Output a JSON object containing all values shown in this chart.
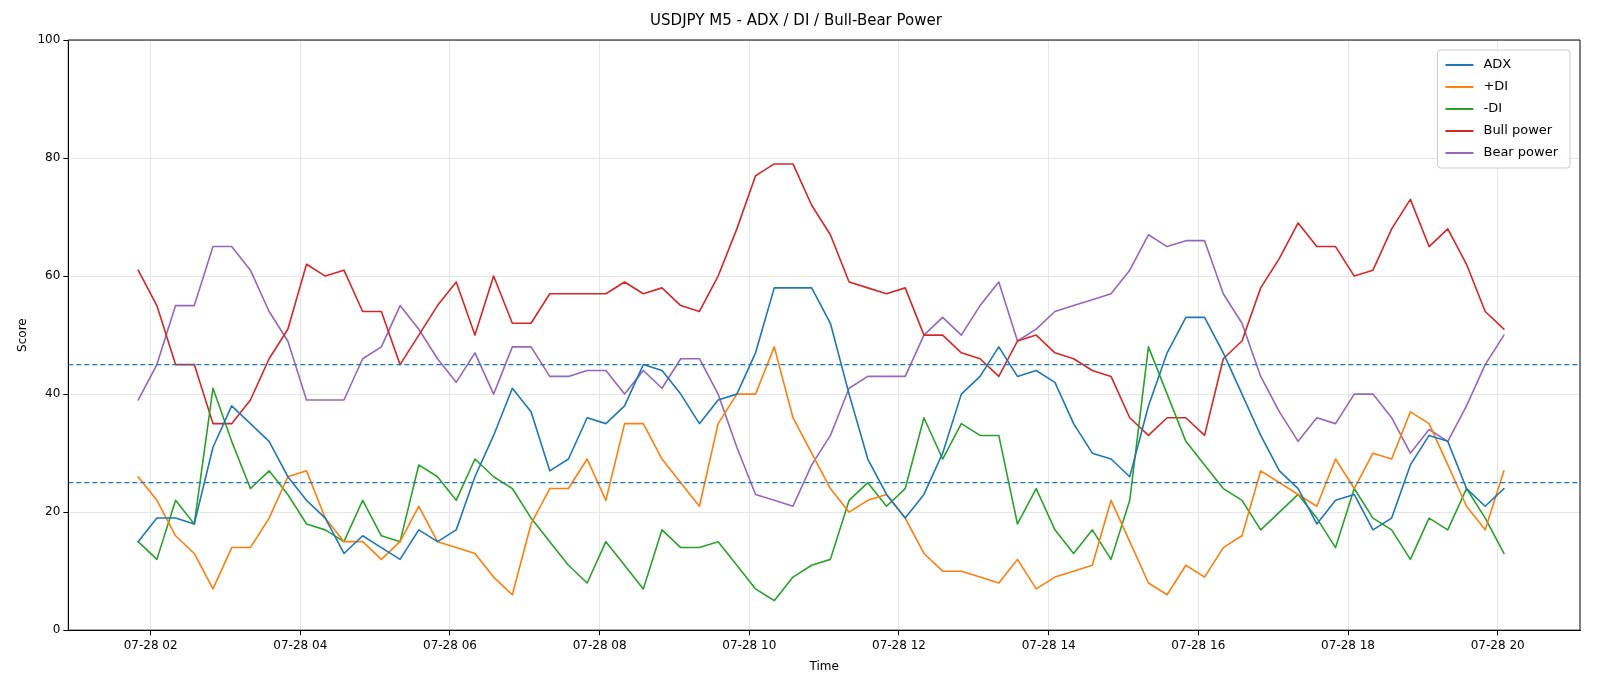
{
  "chart_data": {
    "type": "line",
    "title": "USDJPY M5 - ADX / DI / Bull-Bear Power",
    "xlabel": "Time",
    "ylabel": "Score",
    "x": [
      "--07-28T01:50",
      "--07-28T02:05",
      "--07-28T02:20",
      "--07-28T02:35",
      "--07-28T02:50",
      "--07-28T03:05",
      "--07-28T03:20",
      "--07-28T03:35",
      "--07-28T03:50",
      "--07-28T04:05",
      "--07-28T04:20",
      "--07-28T04:35",
      "--07-28T04:50",
      "--07-28T05:05",
      "--07-28T05:20",
      "--07-28T05:35",
      "--07-28T05:50",
      "--07-28T06:05",
      "--07-28T06:20",
      "--07-28T06:35",
      "--07-28T06:50",
      "--07-28T07:05",
      "--07-28T07:20",
      "--07-28T07:35",
      "--07-28T07:50",
      "--07-28T08:05",
      "--07-28T08:20",
      "--07-28T08:35",
      "--07-28T08:50",
      "--07-28T09:05",
      "--07-28T09:20",
      "--07-28T09:35",
      "--07-28T09:50",
      "--07-28T10:05",
      "--07-28T10:20",
      "--07-28T10:35",
      "--07-28T10:50",
      "--07-28T11:05",
      "--07-28T11:20",
      "--07-28T11:35",
      "--07-28T11:50",
      "--07-28T12:05",
      "--07-28T12:20",
      "--07-28T12:35",
      "--07-28T12:50",
      "--07-28T13:05",
      "--07-28T13:20",
      "--07-28T13:35",
      "--07-28T13:50",
      "--07-28T14:05",
      "--07-28T14:20",
      "--07-28T14:35",
      "--07-28T14:50",
      "--07-28T15:05",
      "--07-28T15:20",
      "--07-28T15:35",
      "--07-28T15:50",
      "--07-28T16:05",
      "--07-28T16:20",
      "--07-28T16:35",
      "--07-28T16:50",
      "--07-28T17:05",
      "--07-28T17:20",
      "--07-28T17:35",
      "--07-28T17:50",
      "--07-28T18:05",
      "--07-28T18:20",
      "--07-28T18:35",
      "--07-28T18:50",
      "--07-28T19:05",
      "--07-28T19:20",
      "--07-28T19:35",
      "--07-28T19:50",
      "--07-28T20:05"
    ],
    "series": [
      {
        "name": "ADX",
        "color": "#1f77b4",
        "values": [
          15,
          19,
          19,
          18,
          31,
          38,
          35,
          32,
          26,
          22,
          19,
          13,
          16,
          14,
          12,
          17,
          15,
          17,
          26,
          33,
          41,
          37,
          27,
          29,
          36,
          35,
          38,
          45,
          44,
          40,
          35,
          39,
          40,
          47,
          58,
          58,
          58,
          52,
          40,
          29,
          23,
          19,
          23,
          30,
          40,
          43,
          48,
          43,
          44,
          42,
          35,
          30,
          29,
          26,
          38,
          47,
          53,
          53,
          47,
          40,
          33,
          27,
          24,
          18,
          22,
          23,
          17,
          19,
          28,
          33,
          32,
          24,
          21,
          24
        ]
      },
      {
        "name": "+DI",
        "color": "#ff7f0e",
        "values": [
          26,
          22,
          16,
          13,
          7,
          14,
          14,
          19,
          26,
          27,
          19,
          15,
          15,
          12,
          15,
          21,
          15,
          14,
          13,
          9,
          6,
          18,
          24,
          24,
          29,
          22,
          35,
          35,
          29,
          25,
          21,
          35,
          40,
          40,
          48,
          36,
          30,
          24,
          20,
          22,
          23,
          19,
          13,
          10,
          10,
          9,
          8,
          12,
          7,
          9,
          10,
          11,
          22,
          15,
          8,
          6,
          11,
          9,
          14,
          16,
          27,
          25,
          23,
          21,
          29,
          24,
          30,
          29,
          37,
          35,
          28,
          21,
          17,
          27
        ]
      },
      {
        "name": "-DI",
        "color": "#2ca02c",
        "values": [
          15,
          12,
          22,
          18,
          41,
          32,
          24,
          27,
          23,
          18,
          17,
          15,
          22,
          16,
          15,
          28,
          26,
          22,
          29,
          26,
          24,
          19,
          15,
          11,
          8,
          15,
          11,
          7,
          17,
          14,
          14,
          15,
          11,
          7,
          5,
          9,
          11,
          12,
          22,
          25,
          21,
          24,
          36,
          29,
          35,
          33,
          33,
          18,
          24,
          17,
          13,
          17,
          12,
          22,
          48,
          40,
          32,
          28,
          24,
          22,
          17,
          20,
          23,
          19,
          14,
          24,
          19,
          17,
          12,
          19,
          17,
          24,
          19,
          13
        ]
      },
      {
        "name": "Bull power",
        "color": "#d62728",
        "values": [
          61,
          55,
          45,
          45,
          35,
          35,
          39,
          46,
          51,
          62,
          60,
          61,
          54,
          54,
          45,
          50,
          55,
          59,
          50,
          60,
          52,
          52,
          57,
          57,
          57,
          57,
          59,
          57,
          58,
          55,
          54,
          60,
          68,
          77,
          79,
          79,
          72,
          67,
          59,
          58,
          57,
          58,
          50,
          50,
          47,
          46,
          43,
          49,
          50,
          47,
          46,
          44,
          43,
          36,
          33,
          36,
          36,
          33,
          46,
          49,
          58,
          63,
          69,
          65,
          65,
          60,
          61,
          68,
          73,
          65,
          68,
          62,
          54,
          51
        ]
      },
      {
        "name": "Bear power",
        "color": "#9467bd",
        "values": [
          39,
          45,
          55,
          55,
          65,
          65,
          61,
          54,
          49,
          39,
          39,
          39,
          46,
          48,
          55,
          51,
          46,
          42,
          47,
          40,
          48,
          48,
          43,
          43,
          44,
          44,
          40,
          44,
          41,
          46,
          46,
          40,
          31,
          23,
          22,
          21,
          28,
          33,
          41,
          43,
          43,
          43,
          50,
          53,
          50,
          55,
          59,
          49,
          51,
          54,
          55,
          56,
          57,
          61,
          67,
          65,
          66,
          66,
          57,
          52,
          43,
          37,
          32,
          36,
          35,
          40,
          40,
          36,
          30,
          34,
          32,
          38,
          45,
          50
        ]
      }
    ],
    "xlim": [
      "--07-28T00:54",
      "--07-28T21:06"
    ],
    "xticks": [
      {
        "value": "--07-28T02:00",
        "label": "07-28 02"
      },
      {
        "value": "--07-28T04:00",
        "label": "07-28 04"
      },
      {
        "value": "--07-28T06:00",
        "label": "07-28 06"
      },
      {
        "value": "--07-28T08:00",
        "label": "07-28 08"
      },
      {
        "value": "--07-28T10:00",
        "label": "07-28 10"
      },
      {
        "value": "--07-28T12:00",
        "label": "07-28 12"
      },
      {
        "value": "--07-28T14:00",
        "label": "07-28 14"
      },
      {
        "value": "--07-28T16:00",
        "label": "07-28 16"
      },
      {
        "value": "--07-28T18:00",
        "label": "07-28 18"
      },
      {
        "value": "--07-28T20:00",
        "label": "07-28 20"
      }
    ],
    "ylim": [
      0,
      100
    ],
    "yticks": [
      0,
      20,
      40,
      60,
      80,
      100
    ],
    "ref_lines": [
      {
        "axis": "y",
        "value": 45,
        "color": "#1f77b4",
        "line_style": "dashed"
      },
      {
        "axis": "y",
        "value": 25,
        "color": "#1f77b4",
        "line_style": "dashed"
      }
    ],
    "grid": true,
    "legend": "top right",
    "marker": "none",
    "line_style": "solid"
  }
}
